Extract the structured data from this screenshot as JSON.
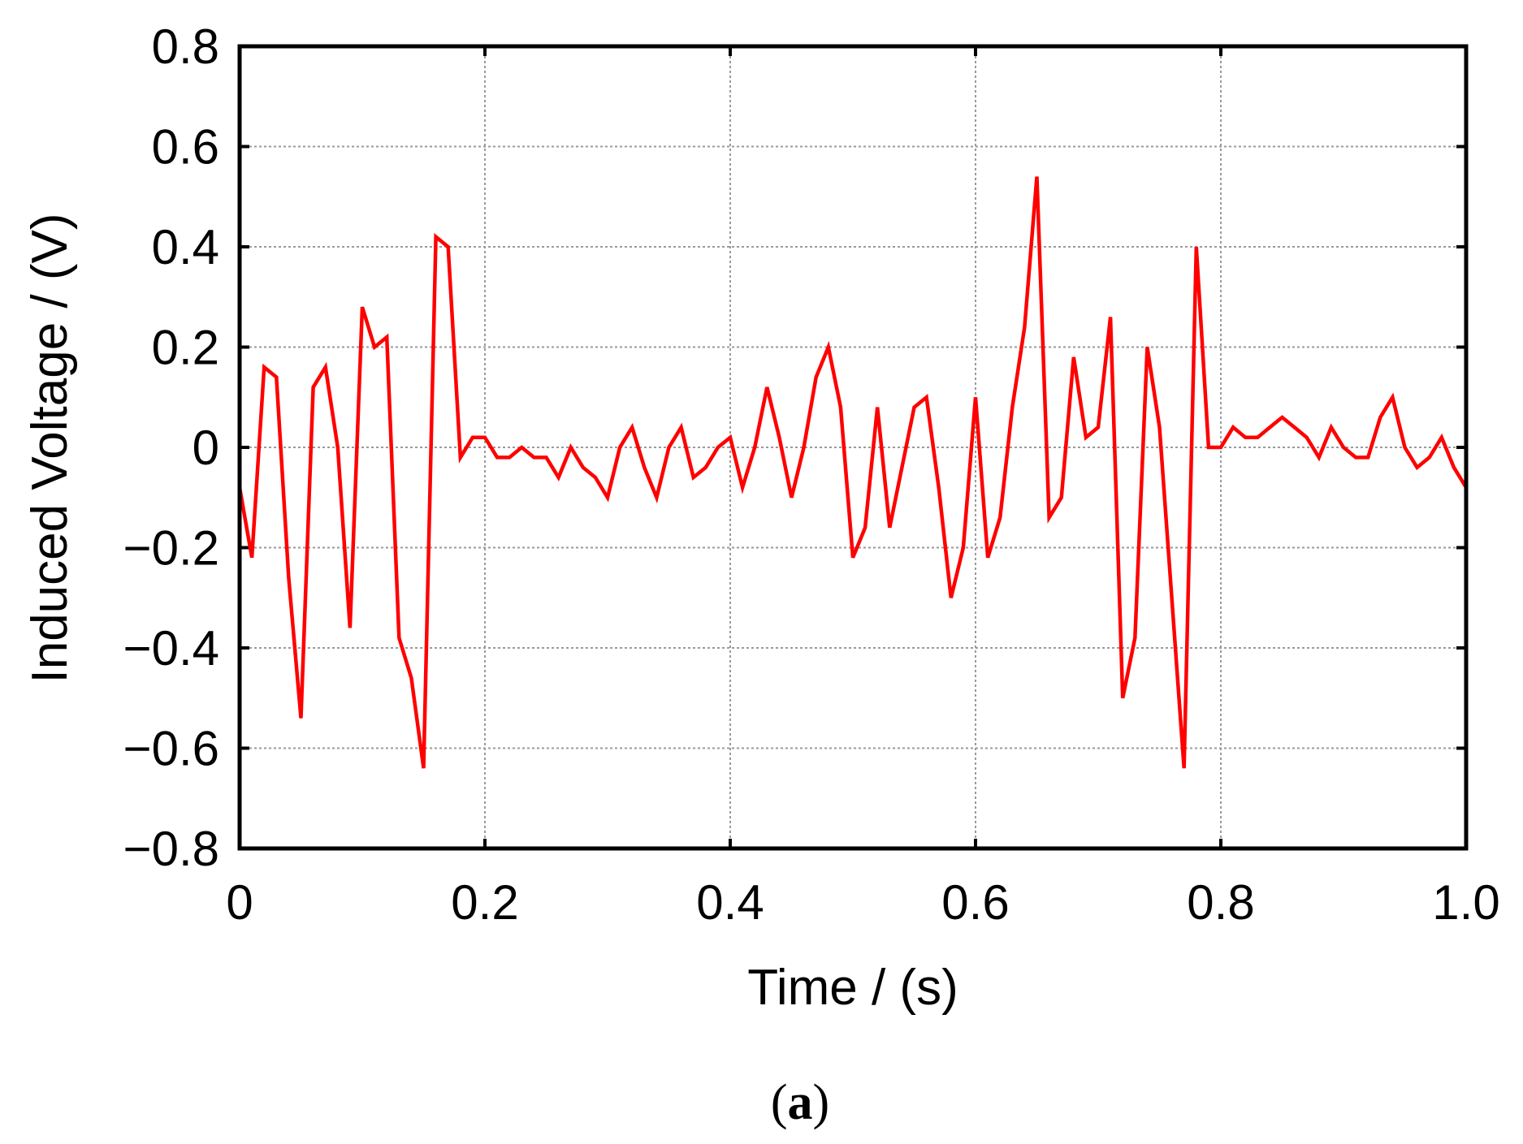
{
  "chart_data": {
    "type": "line",
    "xlabel": "Time / (s)",
    "ylabel": "Induced Voltage / (V)",
    "panel_label": "(a)",
    "panel_letter": "a",
    "xlim": [
      0,
      1.0
    ],
    "ylim": [
      -0.8,
      0.8
    ],
    "xticks": [
      0,
      0.2,
      0.4,
      0.6,
      0.8,
      1.0
    ],
    "xtick_labels": [
      "0",
      "0.2",
      "0.4",
      "0.6",
      "0.8",
      "1.0"
    ],
    "yticks": [
      -0.8,
      -0.6,
      -0.4,
      -0.2,
      0,
      0.2,
      0.4,
      0.6,
      0.8
    ],
    "ytick_labels": [
      "−0.8",
      "−0.6",
      "−0.4",
      "−0.2",
      "0",
      "0.2",
      "0.4",
      "0.6",
      "0.8"
    ],
    "grid": true,
    "line_color": "#ff0000",
    "series": [
      {
        "x": [
          0,
          0.01,
          0.02,
          0.03,
          0.04,
          0.05,
          0.06,
          0.07,
          0.08,
          0.09,
          0.1,
          0.11,
          0.12,
          0.13,
          0.14,
          0.15,
          0.16,
          0.17,
          0.18,
          0.19,
          0.2,
          0.21,
          0.22,
          0.23,
          0.24,
          0.25,
          0.26,
          0.27,
          0.28,
          0.29,
          0.3,
          0.31,
          0.32,
          0.33,
          0.34,
          0.35,
          0.36,
          0.37,
          0.38,
          0.39,
          0.4,
          0.41,
          0.42,
          0.43,
          0.44,
          0.45,
          0.46,
          0.47,
          0.48,
          0.49,
          0.5,
          0.51,
          0.52,
          0.53,
          0.54,
          0.55,
          0.56,
          0.57,
          0.58,
          0.59,
          0.6,
          0.61,
          0.62,
          0.63,
          0.64,
          0.65,
          0.66,
          0.67,
          0.68,
          0.69,
          0.7,
          0.71,
          0.72,
          0.73,
          0.74,
          0.75,
          0.76,
          0.77,
          0.78,
          0.79,
          0.8,
          0.81,
          0.82,
          0.83,
          0.84,
          0.85,
          0.86,
          0.87,
          0.88,
          0.89,
          0.9,
          0.91,
          0.92,
          0.93,
          0.94,
          0.95,
          0.96,
          0.97,
          0.98,
          0.99,
          1.0
        ],
        "y": [
          -0.08,
          -0.22,
          0.16,
          0.14,
          -0.26,
          -0.54,
          0.12,
          0.16,
          0.0,
          -0.36,
          0.28,
          0.2,
          0.22,
          -0.38,
          -0.46,
          -0.64,
          0.42,
          0.4,
          -0.02,
          0.02,
          0.02,
          -0.02,
          -0.02,
          0.0,
          -0.02,
          -0.02,
          -0.06,
          0.0,
          -0.04,
          -0.06,
          -0.1,
          0.0,
          0.04,
          -0.04,
          -0.1,
          0.0,
          0.04,
          -0.06,
          -0.04,
          0.0,
          0.02,
          -0.08,
          0.0,
          0.12,
          0.02,
          -0.1,
          0.0,
          0.14,
          0.2,
          0.08,
          -0.22,
          -0.16,
          0.08,
          -0.16,
          -0.04,
          0.08,
          0.1,
          -0.08,
          -0.3,
          -0.2,
          0.1,
          -0.22,
          -0.14,
          0.08,
          0.24,
          0.54,
          -0.14,
          -0.1,
          0.18,
          0.02,
          0.04,
          0.26,
          -0.5,
          -0.38,
          0.2,
          0.04,
          -0.3,
          -0.64,
          0.4,
          0.0,
          0.0,
          0.04,
          0.02,
          0.02,
          0.04,
          0.06,
          0.04,
          0.02,
          -0.02,
          0.04,
          0.0,
          -0.02,
          -0.02,
          0.06,
          0.1,
          0.0,
          -0.04,
          -0.02,
          0.02,
          -0.04,
          -0.08
        ]
      }
    ]
  }
}
